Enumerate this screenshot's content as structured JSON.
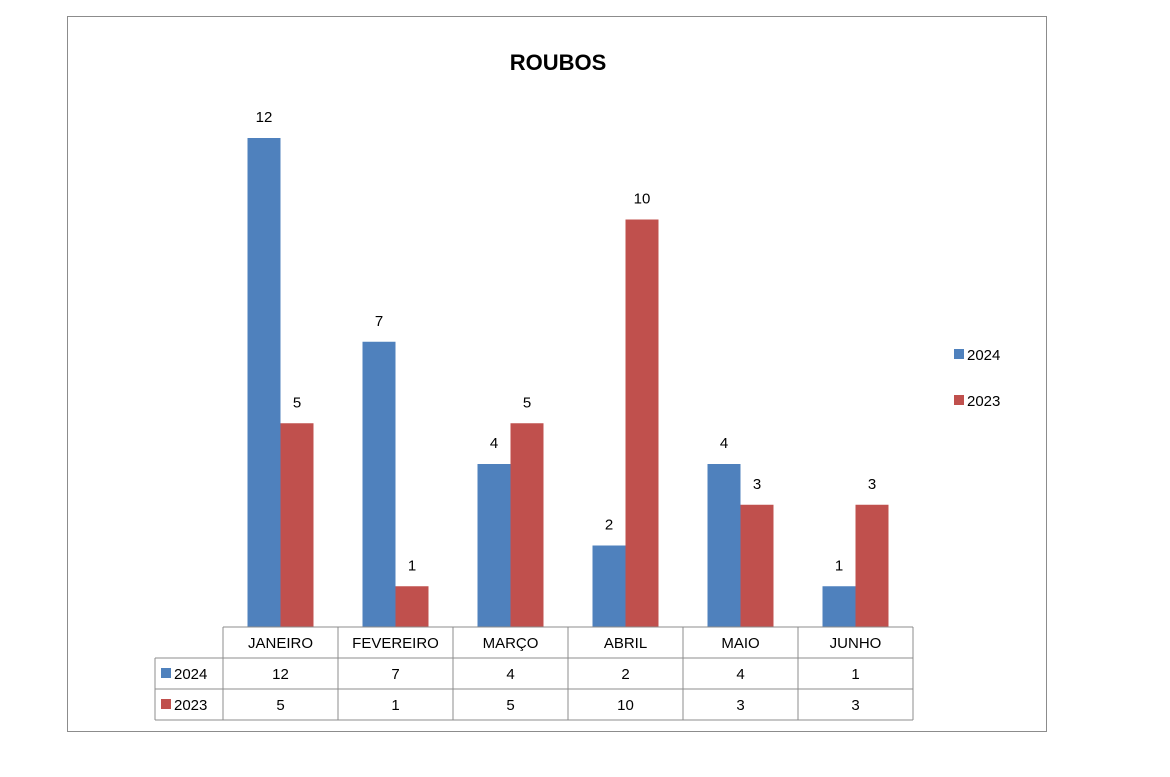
{
  "chart_data": {
    "type": "bar",
    "title": "ROUBOS",
    "categories": [
      "JANEIRO",
      "FEVEREIRO",
      "MARÇO",
      "ABRIL",
      "MAIO",
      "JUNHO"
    ],
    "series": [
      {
        "name": "2024",
        "values": [
          12,
          7,
          4,
          2,
          4,
          1
        ],
        "color": "#4F81BD"
      },
      {
        "name": "2023",
        "values": [
          5,
          1,
          5,
          10,
          3,
          3
        ],
        "color": "#C0504D"
      }
    ],
    "ylim": [
      0,
      12
    ],
    "data_labels": true,
    "grid": false,
    "legend_position": "right",
    "data_table": true
  }
}
